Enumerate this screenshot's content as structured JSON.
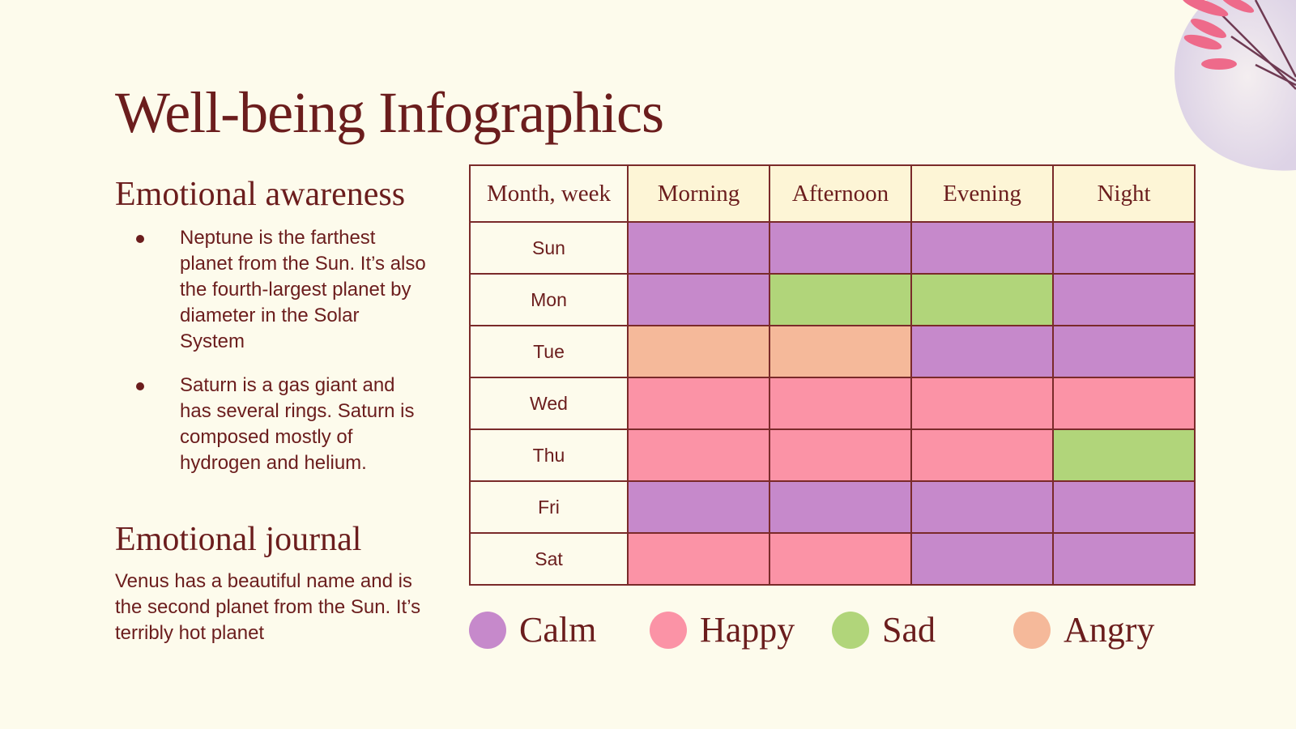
{
  "title": "Well-being Infographics",
  "awareness": {
    "heading": "Emotional awareness",
    "bullets": [
      "Neptune is the farthest planet from the Sun. It’s also the fourth-largest planet by diameter in the Solar System",
      "Saturn is a gas giant and has several rings. Saturn is composed mostly of hydrogen and helium."
    ]
  },
  "journal": {
    "heading": "Emotional journal",
    "text": "Venus has a beautiful name and is the second planet from the Sun. It’s terribly hot planet"
  },
  "table": {
    "columns": [
      "Month, week",
      "Morning",
      "Afternoon",
      "Evening",
      "Night"
    ],
    "rows": [
      {
        "day": "Sun",
        "moods": [
          "Calm",
          "Calm",
          "Calm",
          "Calm"
        ]
      },
      {
        "day": "Mon",
        "moods": [
          "Calm",
          "Sad",
          "Sad",
          "Calm"
        ]
      },
      {
        "day": "Tue",
        "moods": [
          "Angry",
          "Angry",
          "Calm",
          "Calm"
        ]
      },
      {
        "day": "Wed",
        "moods": [
          "Happy",
          "Happy",
          "Happy",
          "Happy"
        ]
      },
      {
        "day": "Thu",
        "moods": [
          "Happy",
          "Happy",
          "Happy",
          "Sad"
        ]
      },
      {
        "day": "Fri",
        "moods": [
          "Calm",
          "Calm",
          "Calm",
          "Calm"
        ]
      },
      {
        "day": "Sat",
        "moods": [
          "Happy",
          "Happy",
          "Calm",
          "Calm"
        ]
      }
    ]
  },
  "legend": [
    {
      "label": "Calm",
      "color": "#c689cb"
    },
    {
      "label": "Happy",
      "color": "#fb93a6"
    },
    {
      "label": "Sad",
      "color": "#b1d57a"
    },
    {
      "label": "Angry",
      "color": "#f5b99a"
    }
  ]
}
